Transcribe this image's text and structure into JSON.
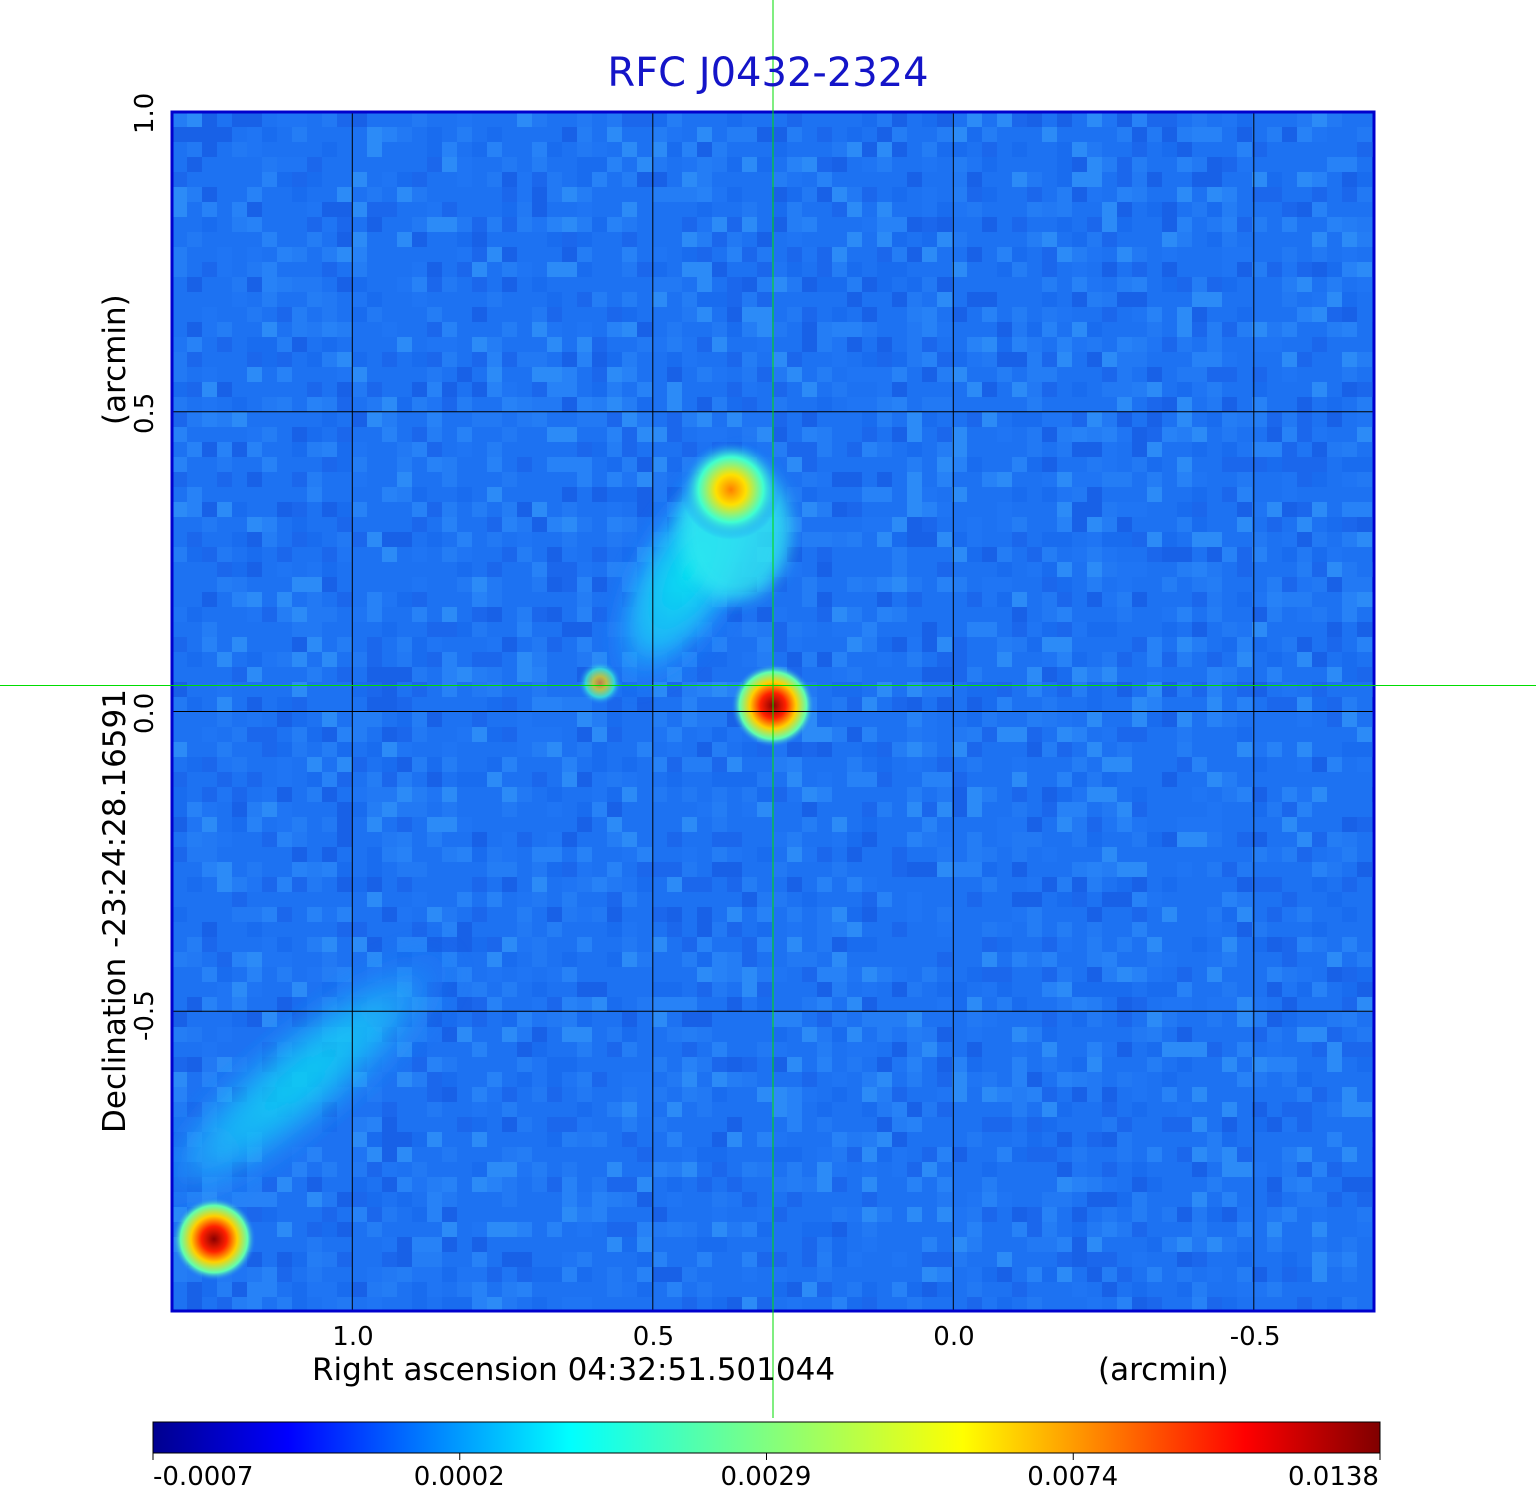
{
  "chart_data": {
    "type": "heatmap",
    "title": "RFC J0432-2324",
    "xlabel": "Right ascension  04:32:51.501044",
    "xunit": "(arcmin)",
    "ylabel": "Declination  -23:24:28.16591",
    "yunit": "(arcmin)",
    "xlim": [
      1.3,
      -0.7
    ],
    "ylim": [
      -1.0,
      1.0
    ],
    "x_ticks": [
      1.0,
      0.5,
      0.0,
      -0.5
    ],
    "x_tick_labels": [
      "1.0",
      "0.5",
      "0.0",
      "-0.5"
    ],
    "y_ticks": [
      1.0,
      0.5,
      0.0,
      -0.5
    ],
    "y_tick_labels": [
      "1.0",
      "0.5",
      "0.0",
      "-0.5"
    ],
    "grid": true,
    "crosshair": [
      0.3,
      0.03
    ],
    "colormap": "jet",
    "colorbar_ticks": [
      "-0.0007",
      "0.0002",
      "0.0029",
      "0.0074",
      "0.0138"
    ],
    "sources": [
      {
        "x": 0.3,
        "y": 0.01,
        "peak": 0.0138
      },
      {
        "x": 0.37,
        "y": 0.37,
        "peak": 0.007
      },
      {
        "x": 1.23,
        "y": -0.88,
        "peak": 0.0138
      }
    ]
  },
  "colors": {
    "title": "#1414c8",
    "frame": "#0000cd",
    "crosshair": "#00dd00",
    "grid": "#000000"
  }
}
